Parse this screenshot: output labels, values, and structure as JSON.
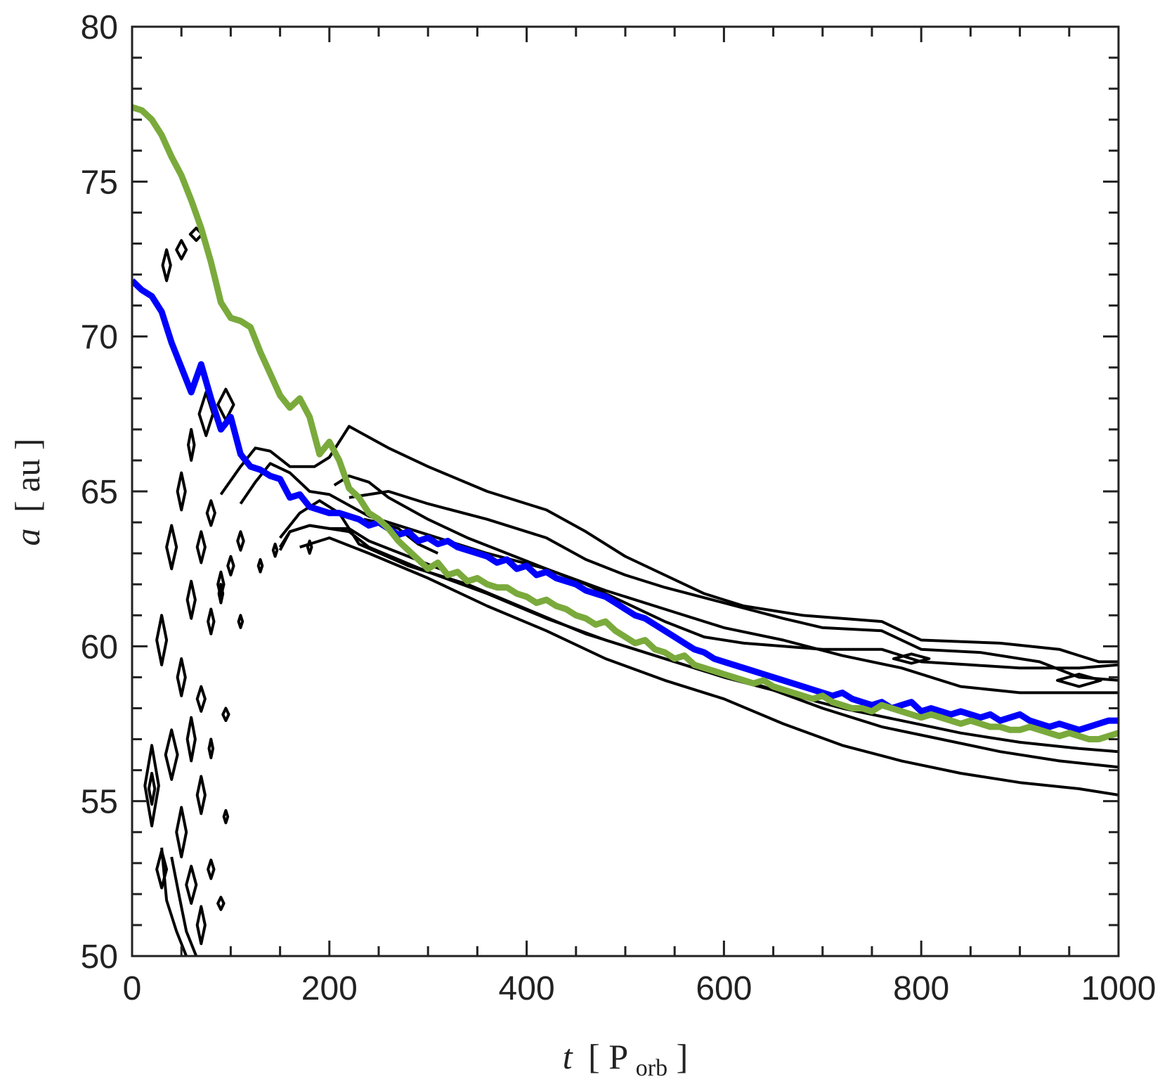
{
  "chart_data": {
    "type": "line",
    "title": "",
    "xlabel": {
      "var": "t",
      "open": "[",
      "unit": "P",
      "sub": "orb",
      "close": "]"
    },
    "ylabel": {
      "var": "a",
      "open": "[",
      "unit": "au",
      "close": "]"
    },
    "xlim": [
      0,
      1000
    ],
    "ylim": [
      50,
      80
    ],
    "xticks": [
      "0",
      "200",
      "400",
      "600",
      "800",
      "1000"
    ],
    "yticks": [
      "50",
      "55",
      "60",
      "65",
      "70",
      "75",
      "80"
    ],
    "grid": false,
    "colors": {
      "blue": "#0000ff",
      "green": "#7aaa3c",
      "contour": "#000000",
      "axis": "#222222"
    },
    "series": [
      {
        "name": "blue",
        "x": [
          0,
          10,
          20,
          30,
          40,
          50,
          60,
          70,
          80,
          90,
          100,
          110,
          120,
          130,
          140,
          150,
          160,
          170,
          180,
          190,
          200,
          210,
          220,
          230,
          240,
          250,
          260,
          270,
          280,
          290,
          300,
          310,
          320,
          330,
          340,
          350,
          360,
          370,
          380,
          390,
          400,
          410,
          420,
          430,
          440,
          450,
          460,
          470,
          480,
          490,
          500,
          510,
          520,
          530,
          540,
          550,
          560,
          570,
          580,
          590,
          600,
          610,
          620,
          630,
          640,
          650,
          660,
          670,
          680,
          690,
          700,
          710,
          720,
          730,
          740,
          750,
          760,
          770,
          780,
          790,
          800,
          810,
          820,
          830,
          840,
          850,
          860,
          870,
          880,
          890,
          900,
          910,
          920,
          930,
          940,
          950,
          960,
          970,
          980,
          990,
          1000
        ],
        "y": [
          71.8,
          71.5,
          71.3,
          70.8,
          69.8,
          69.0,
          68.2,
          69.1,
          68.0,
          67.0,
          67.4,
          66.2,
          65.8,
          65.7,
          65.5,
          65.4,
          64.8,
          64.9,
          64.5,
          64.4,
          64.3,
          64.3,
          64.2,
          64.1,
          63.9,
          64.0,
          63.8,
          63.6,
          63.7,
          63.4,
          63.5,
          63.3,
          63.4,
          63.2,
          63.1,
          63.0,
          62.9,
          62.7,
          62.8,
          62.5,
          62.6,
          62.3,
          62.4,
          62.2,
          62.1,
          62.0,
          61.8,
          61.7,
          61.6,
          61.4,
          61.2,
          61.0,
          60.9,
          60.7,
          60.5,
          60.3,
          60.1,
          59.9,
          59.8,
          59.6,
          59.5,
          59.4,
          59.3,
          59.2,
          59.1,
          59.0,
          58.9,
          58.8,
          58.7,
          58.6,
          58.5,
          58.4,
          58.5,
          58.3,
          58.2,
          58.1,
          58.2,
          58.0,
          58.1,
          58.2,
          57.9,
          58.0,
          57.9,
          57.8,
          57.9,
          57.8,
          57.7,
          57.8,
          57.6,
          57.7,
          57.8,
          57.6,
          57.5,
          57.4,
          57.5,
          57.4,
          57.3,
          57.4,
          57.5,
          57.6,
          57.6
        ]
      },
      {
        "name": "green",
        "x": [
          0,
          10,
          20,
          30,
          40,
          50,
          60,
          70,
          80,
          90,
          100,
          110,
          120,
          130,
          140,
          150,
          160,
          170,
          180,
          190,
          200,
          210,
          220,
          230,
          240,
          250,
          260,
          270,
          280,
          290,
          300,
          310,
          320,
          330,
          340,
          350,
          360,
          370,
          380,
          390,
          400,
          410,
          420,
          430,
          440,
          450,
          460,
          470,
          480,
          490,
          500,
          510,
          520,
          530,
          540,
          550,
          560,
          570,
          580,
          590,
          600,
          610,
          620,
          630,
          640,
          650,
          660,
          670,
          680,
          690,
          700,
          710,
          720,
          730,
          740,
          750,
          760,
          770,
          780,
          790,
          800,
          810,
          820,
          830,
          840,
          850,
          860,
          870,
          880,
          890,
          900,
          910,
          920,
          930,
          940,
          950,
          960,
          970,
          980,
          990,
          1000
        ],
        "y": [
          77.4,
          77.3,
          77.0,
          76.5,
          75.8,
          75.2,
          74.4,
          73.5,
          72.4,
          71.1,
          70.6,
          70.5,
          70.3,
          69.5,
          68.8,
          68.1,
          67.7,
          68.0,
          67.4,
          66.2,
          66.6,
          66.0,
          65.1,
          64.8,
          64.3,
          64.1,
          63.8,
          63.4,
          63.1,
          62.8,
          62.5,
          62.7,
          62.3,
          62.4,
          62.1,
          62.2,
          62.0,
          61.9,
          61.9,
          61.7,
          61.6,
          61.4,
          61.5,
          61.3,
          61.2,
          61.0,
          60.9,
          60.7,
          60.8,
          60.5,
          60.3,
          60.1,
          60.2,
          59.9,
          59.8,
          59.6,
          59.7,
          59.4,
          59.3,
          59.2,
          59.1,
          59.0,
          58.9,
          58.8,
          58.9,
          58.7,
          58.6,
          58.5,
          58.4,
          58.3,
          58.4,
          58.2,
          58.1,
          58.0,
          58.0,
          57.9,
          58.1,
          58.0,
          57.9,
          57.8,
          57.7,
          57.8,
          57.7,
          57.6,
          57.5,
          57.6,
          57.5,
          57.4,
          57.4,
          57.3,
          57.3,
          57.4,
          57.3,
          57.2,
          57.1,
          57.2,
          57.1,
          57.0,
          57.0,
          57.1,
          57.2
        ]
      }
    ]
  }
}
